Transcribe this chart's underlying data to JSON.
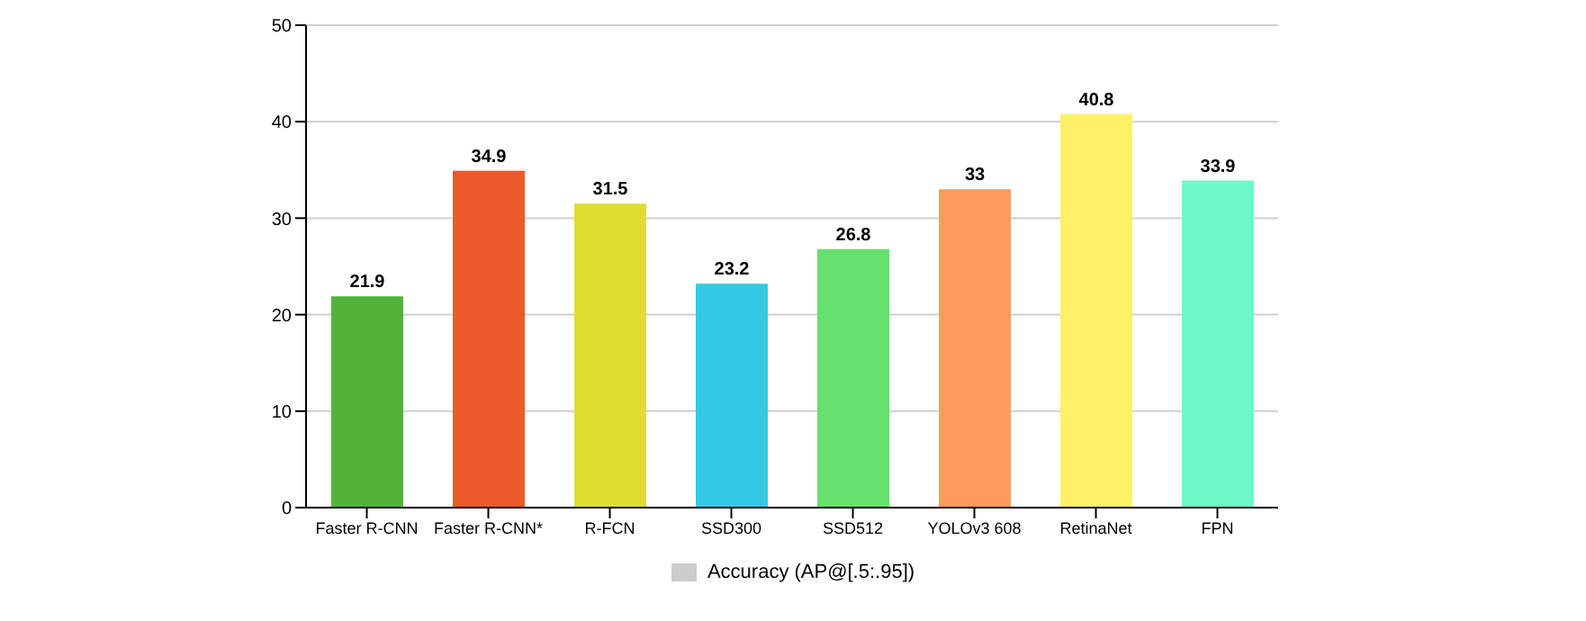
{
  "chart_data": {
    "type": "bar",
    "categories": [
      "Faster R-CNN",
      "Faster R-CNN*",
      "R-FCN",
      "SSD300",
      "SSD512",
      "YOLOv3 608",
      "RetinaNet",
      "FPN"
    ],
    "series": [
      {
        "name": "Accuracy  (AP@[.5:.95])",
        "color": "#cccccc",
        "colors": [
          "#52b33a",
          "#ec5a2c",
          "#dedd30",
          "#33c9e3",
          "#66e06e",
          "#ff9a5c",
          "#fff06a",
          "#6ff8c8"
        ],
        "values": [
          21.9,
          34.9,
          31.5,
          23.2,
          26.8,
          33,
          40.8,
          33.9
        ]
      }
    ],
    "ylim": [
      0,
      50
    ],
    "yticks": [
      0,
      10,
      20,
      30,
      40,
      50
    ],
    "grid": "y",
    "legend": "bottom",
    "data_labels": true
  }
}
